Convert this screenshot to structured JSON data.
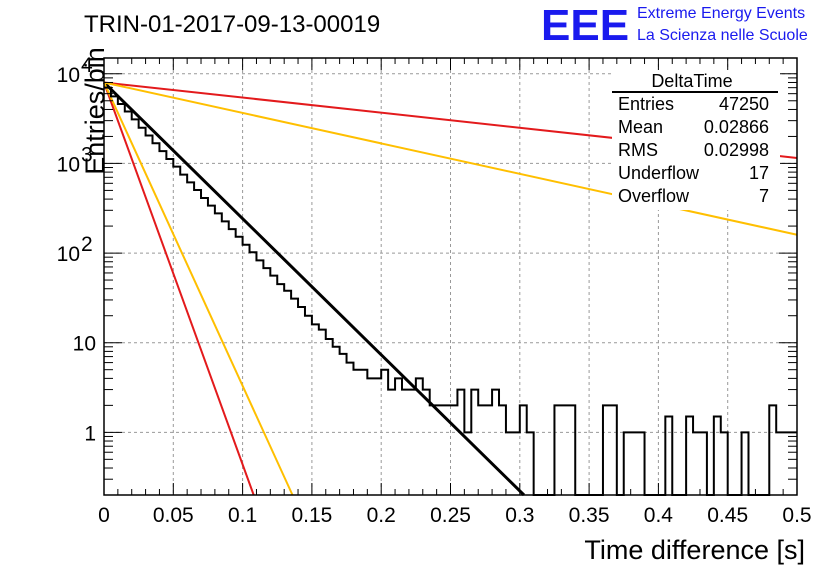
{
  "page": {
    "title": "TRIN-01-2017-09-13-00019"
  },
  "logo": {
    "mark": "EEE",
    "line1": "Extreme Energy Events",
    "line2": "La Scienza nelle Scuole",
    "color": "#1a1aee"
  },
  "stats_box": {
    "title": "DeltaTime",
    "rows": [
      {
        "label": "Entries",
        "value": "47250"
      },
      {
        "label": "Mean",
        "value": "0.02866"
      },
      {
        "label": "RMS",
        "value": "0.02998"
      },
      {
        "label": "Underflow",
        "value": "17"
      },
      {
        "label": "Overflow",
        "value": "7"
      }
    ]
  },
  "chart_data": {
    "type": "histogram",
    "xlabel": "Time difference [s]",
    "ylabel": "Entries/bin",
    "xlim": [
      0,
      0.5
    ],
    "ylim": [
      0.2,
      15000
    ],
    "yscale": "log",
    "grid": true,
    "x_ticks": [
      "0",
      "0.05",
      "0.1",
      "0.15",
      "0.2",
      "0.25",
      "0.3",
      "0.35",
      "0.4",
      "0.45",
      "0.5"
    ],
    "y_ticks": [
      {
        "value": 1,
        "label": "1"
      },
      {
        "value": 10,
        "label": "10"
      },
      {
        "value": 100,
        "label": "10",
        "exp": "2"
      },
      {
        "value": 1000,
        "label": "10",
        "exp": "3"
      },
      {
        "value": 10000,
        "label": "10",
        "exp": "4"
      }
    ],
    "bin_width": 0.005,
    "histogram_counts": [
      7000,
      5600,
      4600,
      3800,
      3100,
      2500,
      2050,
      1680,
      1370,
      1120,
      920,
      750,
      615,
      505,
      412,
      338,
      277,
      226,
      185,
      152,
      124,
      102,
      83,
      68,
      56,
      45,
      38,
      31,
      25,
      20,
      16,
      14,
      11,
      9,
      7.5,
      6,
      5,
      5,
      4,
      4,
      5,
      3,
      4,
      3,
      3,
      4,
      3,
      2,
      2,
      2,
      2,
      3,
      1,
      3,
      2,
      2,
      3,
      2,
      1,
      1,
      2,
      1,
      0,
      0,
      0,
      2,
      2,
      2,
      0,
      0,
      0,
      0,
      2,
      2,
      0,
      1,
      1,
      1,
      0,
      0,
      0,
      1.5,
      0,
      0,
      1.5,
      1,
      1,
      0,
      1.5,
      1,
      0,
      0,
      1,
      0,
      0,
      0,
      2,
      1,
      1,
      1
    ],
    "fit_lines": [
      {
        "color": "#000000",
        "width": 3,
        "points": [
          [
            0,
            8000
          ],
          [
            0.303,
            0.2
          ]
        ]
      },
      {
        "color": "#e31a1c",
        "width": 2,
        "points": [
          [
            0,
            8000
          ],
          [
            0.5,
            1150
          ]
        ]
      },
      {
        "color": "#ffbf00",
        "width": 2,
        "points": [
          [
            0,
            8000
          ],
          [
            0.5,
            160
          ]
        ]
      },
      {
        "color": "#e31a1c",
        "width": 2,
        "points": [
          [
            0,
            8000
          ],
          [
            0.108,
            0.2
          ]
        ]
      },
      {
        "color": "#ffbf00",
        "width": 2,
        "points": [
          [
            0,
            8000
          ],
          [
            0.136,
            0.2
          ]
        ]
      }
    ]
  }
}
